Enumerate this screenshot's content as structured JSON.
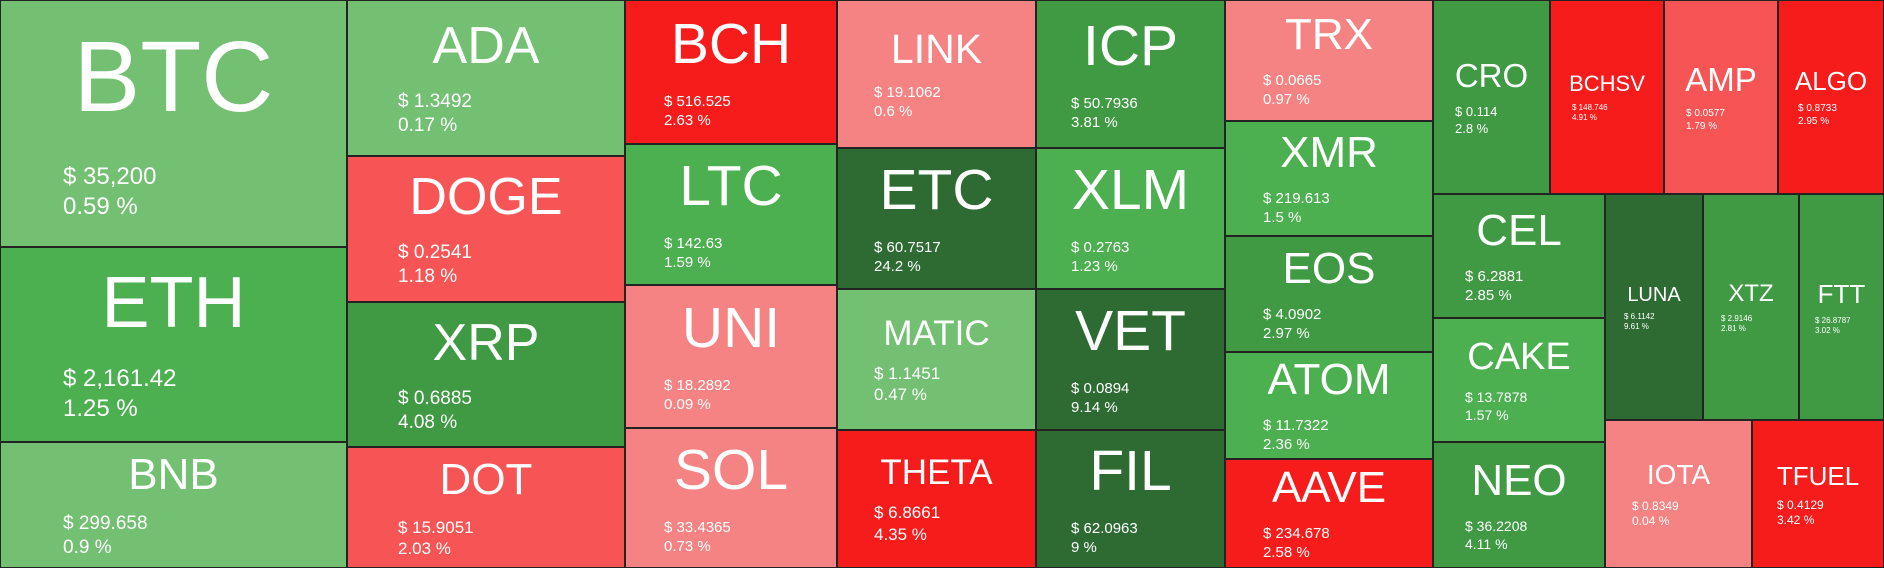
{
  "palette": {
    "light_green": "#73c073",
    "green": "#4caf50",
    "mid_green": "#3f9a43",
    "dark_green": "#2e6b32",
    "light_red": "#f58383",
    "red": "#f75555",
    "strong_red": "#f61c1c"
  },
  "coins": [
    {
      "symbol": "BTC",
      "price": "$ 35,200",
      "change": "0.59 %",
      "color": "light_green"
    },
    {
      "symbol": "ETH",
      "price": "$ 2,161.42",
      "change": "1.25 %",
      "color": "green"
    },
    {
      "symbol": "BNB",
      "price": "$ 299.658",
      "change": "0.9 %",
      "color": "light_green"
    },
    {
      "symbol": "ADA",
      "price": "$ 1.3492",
      "change": "0.17 %",
      "color": "light_green"
    },
    {
      "symbol": "DOGE",
      "price": "$ 0.2541",
      "change": "1.18 %",
      "color": "red"
    },
    {
      "symbol": "XRP",
      "price": "$ 0.6885",
      "change": "4.08 %",
      "color": "mid_green"
    },
    {
      "symbol": "DOT",
      "price": "$ 15.9051",
      "change": "2.03 %",
      "color": "red"
    },
    {
      "symbol": "BCH",
      "price": "$ 516.525",
      "change": "2.63 %",
      "color": "strong_red"
    },
    {
      "symbol": "LTC",
      "price": "$ 142.63",
      "change": "1.59 %",
      "color": "green"
    },
    {
      "symbol": "UNI",
      "price": "$ 18.2892",
      "change": "0.09 %",
      "color": "light_red"
    },
    {
      "symbol": "SOL",
      "price": "$ 33.4365",
      "change": "0.73 %",
      "color": "light_red"
    },
    {
      "symbol": "LINK",
      "price": "$ 19.1062",
      "change": "0.6 %",
      "color": "light_red"
    },
    {
      "symbol": "ETC",
      "price": "$ 60.7517",
      "change": "24.2 %",
      "color": "dark_green"
    },
    {
      "symbol": "MATIC",
      "price": "$ 1.1451",
      "change": "0.47 %",
      "color": "light_green"
    },
    {
      "symbol": "THETA",
      "price": "$ 6.8661",
      "change": "4.35 %",
      "color": "strong_red"
    },
    {
      "symbol": "ICP",
      "price": "$ 50.7936",
      "change": "3.81 %",
      "color": "mid_green"
    },
    {
      "symbol": "XLM",
      "price": "$ 0.2763",
      "change": "1.23 %",
      "color": "green"
    },
    {
      "symbol": "VET",
      "price": "$ 0.0894",
      "change": "9.14 %",
      "color": "dark_green"
    },
    {
      "symbol": "FIL",
      "price": "$ 62.0963",
      "change": "9 %",
      "color": "dark_green"
    },
    {
      "symbol": "TRX",
      "price": "$ 0.0665",
      "change": "0.97 %",
      "color": "light_red"
    },
    {
      "symbol": "XMR",
      "price": "$ 219.613",
      "change": "1.5 %",
      "color": "green"
    },
    {
      "symbol": "EOS",
      "price": "$ 4.0902",
      "change": "2.97 %",
      "color": "mid_green"
    },
    {
      "symbol": "ATOM",
      "price": "$ 11.7322",
      "change": "2.36 %",
      "color": "green"
    },
    {
      "symbol": "AAVE",
      "price": "$ 234.678",
      "change": "2.58 %",
      "color": "strong_red"
    },
    {
      "symbol": "CRO",
      "price": "$ 0.114",
      "change": "2.8 %",
      "color": "mid_green"
    },
    {
      "symbol": "BCHSV",
      "price": "$ 148.746",
      "change": "4.91 %",
      "color": "strong_red"
    },
    {
      "symbol": "AMP",
      "price": "$ 0.0577",
      "change": "1.79 %",
      "color": "red"
    },
    {
      "symbol": "ALGO",
      "price": "$ 0.8733",
      "change": "2.95 %",
      "color": "strong_red"
    },
    {
      "symbol": "CEL",
      "price": "$ 6.2881",
      "change": "2.85 %",
      "color": "mid_green"
    },
    {
      "symbol": "CAKE",
      "price": "$ 13.7878",
      "change": "1.57 %",
      "color": "green"
    },
    {
      "symbol": "NEO",
      "price": "$ 36.2208",
      "change": "4.11 %",
      "color": "mid_green"
    },
    {
      "symbol": "LUNA",
      "price": "$ 6.1142",
      "change": "9.61 %",
      "color": "dark_green"
    },
    {
      "symbol": "XTZ",
      "price": "$ 2.9146",
      "change": "2.81 %",
      "color": "mid_green"
    },
    {
      "symbol": "FTT",
      "price": "$ 26.8787",
      "change": "3.02 %",
      "color": "mid_green"
    },
    {
      "symbol": "IOTA",
      "price": "$ 0.8349",
      "change": "0.04 %",
      "color": "light_red"
    },
    {
      "symbol": "TFUEL",
      "price": "$ 0.4129",
      "change": "3.42 %",
      "color": "strong_red"
    }
  ]
}
